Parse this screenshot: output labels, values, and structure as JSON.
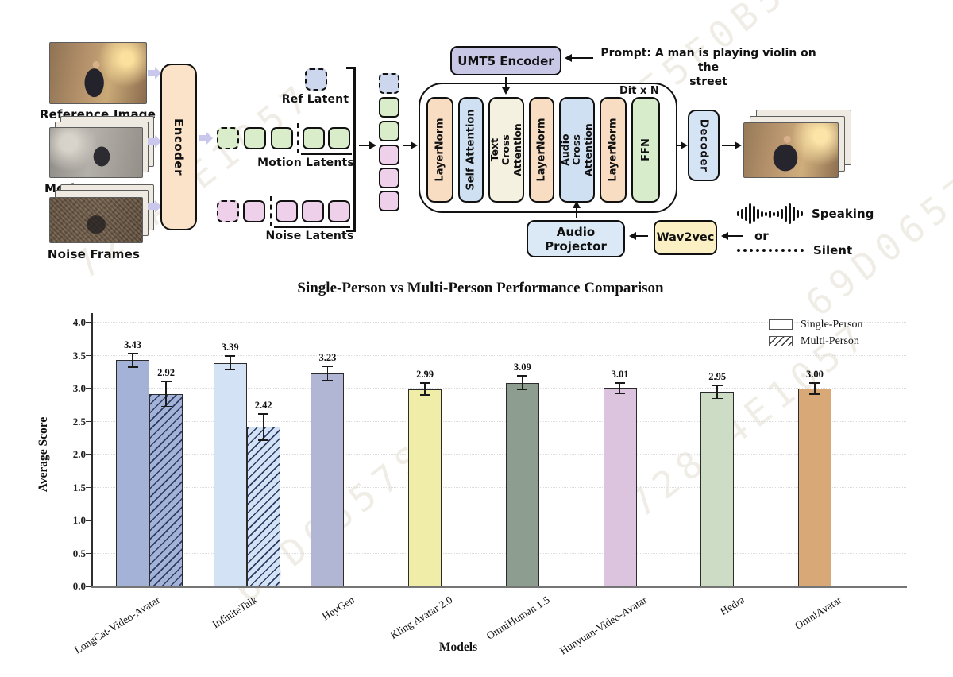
{
  "diagram": {
    "inputs": {
      "reference_label": "Reference Image",
      "motion_label": "Motion Frames",
      "noise_label": "Noise Frames"
    },
    "encoder_label": "Encoder",
    "latents": {
      "ref": "Ref Latent",
      "motion": "Motion Latents",
      "noise": "Noise Latents"
    },
    "umt5_label": "UMT5 Encoder",
    "prompt": {
      "line1": "Prompt: A man is playing violin on the",
      "line2": "street"
    },
    "dit_label": "Dit x N",
    "blocks": [
      "LayerNorm",
      "Self Attention",
      "Text Cross Attention",
      "LayerNorm",
      "Audio Cross Attention",
      "LayerNorm",
      "FFN"
    ],
    "audio_projector": {
      "line1": "Audio",
      "line2": "Projector"
    },
    "wav2vec_label": "Wav2vec",
    "decoder_label": "Decoder",
    "speaking_label": "Speaking",
    "or_label": "or",
    "silent_label": "Silent",
    "colors": {
      "encoder": "#fbe3ca",
      "umt5": "#c9c7e6",
      "layernorm": "#f8ddc2",
      "attention_blue": "#cfe0f3",
      "text_cross": "#f4f1e0",
      "ffn": "#d7ecca",
      "audio_projector": "#dbe8f6",
      "wav2vec": "#faf0c4",
      "decoder": "#d5e4f5",
      "latent_blue": "#ccd7ee",
      "latent_green": "#d9edcb",
      "latent_pink": "#eed0eb"
    }
  },
  "chart_data": {
    "type": "bar",
    "title": "Single-Person vs Multi-Person Performance Comparison",
    "xlabel": "Models",
    "ylabel": "Average Score",
    "ylim": [
      0.0,
      4.15
    ],
    "yticks": [
      0.0,
      0.5,
      1.0,
      1.5,
      2.0,
      2.5,
      3.0,
      3.5,
      4.0
    ],
    "grid": true,
    "legend_position": "upper right",
    "categories": [
      "LongCat-Video-Avatar",
      "InfiniteTalk",
      "HeyGen",
      "Kling Avatar 2.0",
      "OmniHuman 1.5",
      "Hunyuan-Video-Avatar",
      "Hedra",
      "OmniAvatar"
    ],
    "series": [
      {
        "name": "Single-Person",
        "style": "solid",
        "values": [
          3.43,
          3.39,
          3.23,
          2.99,
          3.09,
          3.01,
          2.95,
          3.0
        ],
        "errors": [
          0.1,
          0.1,
          0.11,
          0.09,
          0.1,
          0.08,
          0.1,
          0.08
        ]
      },
      {
        "name": "Multi-Person",
        "style": "hatched",
        "values": [
          2.92,
          2.42,
          null,
          null,
          null,
          null,
          null,
          null
        ],
        "errors": [
          0.19,
          0.2,
          null,
          null,
          null,
          null,
          null,
          null
        ]
      }
    ],
    "bar_colors": [
      "#a3b2d6",
      "#d3e2f4",
      "#b0b6d4",
      "#f0eda9",
      "#8d9e91",
      "#dcc3de",
      "#cdddc5",
      "#d8a877"
    ],
    "hatch_color": "#2a3c64"
  },
  "watermark": {
    "fragments": [
      "728A4E1057",
      "7284AE5F0B57",
      "69D0657S"
    ]
  }
}
